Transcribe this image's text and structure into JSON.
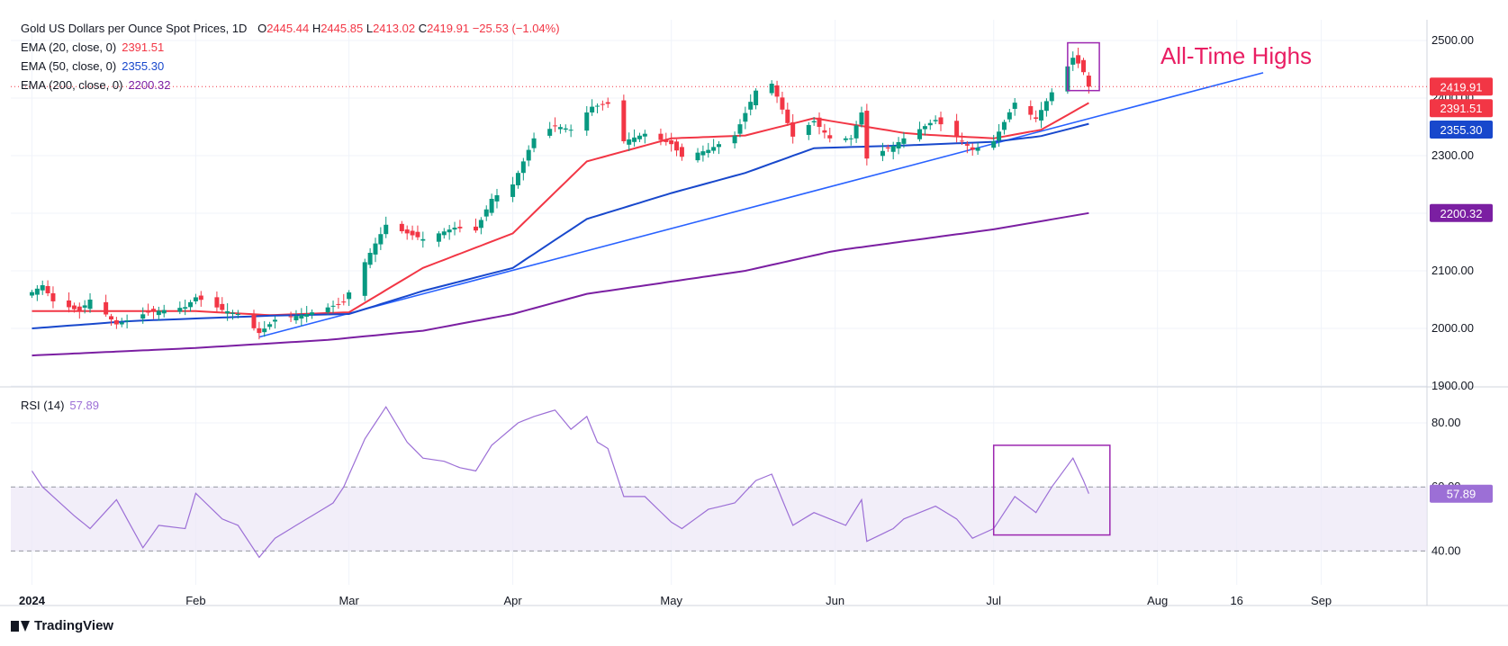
{
  "header": {
    "title": "Gold US Dollars per Ounce Spot Prices, 1D",
    "open_label": "O",
    "open": "2445.44",
    "high_label": "H",
    "high": "2445.85",
    "low_label": "L",
    "low": "2413.02",
    "close_label": "C",
    "close": "2419.91",
    "change": "−25.53 (−1.04%)"
  },
  "indicators": {
    "ema20": {
      "label": "EMA (20, close, 0)",
      "value": "2391.51",
      "color": "#f23645"
    },
    "ema50": {
      "label": "EMA (50, close, 0)",
      "value": "2355.30",
      "color": "#1848cc"
    },
    "ema200": {
      "label": "EMA (200, close, 0)",
      "value": "2200.32",
      "color": "#7b1fa2"
    },
    "rsi": {
      "label": "RSI (14)",
      "value": "57.89",
      "color": "#9c6fd6"
    }
  },
  "annotation": {
    "text": "All-Time Highs",
    "color": "#e91e63"
  },
  "branding": {
    "name": "TradingView"
  },
  "colors": {
    "up": "#089981",
    "down": "#f23645",
    "trendline": "#2962ff",
    "close_line": "#f23645"
  },
  "chart_data": [
    {
      "type": "candlestick",
      "title": "Gold US Dollars per Ounce Spot Prices, 1D",
      "ylim": [
        1900,
        2500
      ],
      "y_ticks": [
        "2500.00",
        "2400.00",
        "2300.00",
        "2200.00",
        "2100.00",
        "2000.00",
        "1900.00"
      ],
      "x_ticks": [
        "2024",
        "Feb",
        "Mar",
        "Apr",
        "May",
        "Jun",
        "Jul",
        "Aug",
        "16",
        "Sep"
      ],
      "price_labels": {
        "close": "2419.91",
        "ema20": "2391.51",
        "ema50": "2355.30",
        "ema200": "2200.32"
      },
      "close_anchors": [
        [
          "2024-01-01",
          2063
        ],
        [
          "2024-01-03",
          2075
        ],
        [
          "2024-01-05",
          2047
        ],
        [
          "2024-01-10",
          2030
        ],
        [
          "2024-01-12",
          2050
        ],
        [
          "2024-01-17",
          2007
        ],
        [
          "2024-01-23",
          2028
        ],
        [
          "2024-01-30",
          2037
        ],
        [
          "2024-02-01",
          2054
        ],
        [
          "2024-02-06",
          2032
        ],
        [
          "2024-02-09",
          2025
        ],
        [
          "2024-02-13",
          1992
        ],
        [
          "2024-02-16",
          2015
        ],
        [
          "2024-02-22",
          2025
        ],
        [
          "2024-02-29",
          2045
        ],
        [
          "2024-03-04",
          2115
        ],
        [
          "2024-03-08",
          2180
        ],
        [
          "2024-03-12",
          2165
        ],
        [
          "2024-03-15",
          2155
        ],
        [
          "2024-03-21",
          2175
        ],
        [
          "2024-03-25",
          2170
        ],
        [
          "2024-03-28",
          2225
        ],
        [
          "2024-04-01",
          2250
        ],
        [
          "2024-04-05",
          2330
        ],
        [
          "2024-04-09",
          2352
        ],
        [
          "2024-04-12",
          2345
        ],
        [
          "2024-04-16",
          2385
        ],
        [
          "2024-04-19",
          2390
        ],
        [
          "2024-04-22",
          2325
        ],
        [
          "2024-04-26",
          2338
        ],
        [
          "2024-05-01",
          2320
        ],
        [
          "2024-05-03",
          2298
        ],
        [
          "2024-05-08",
          2310
        ],
        [
          "2024-05-13",
          2335
        ],
        [
          "2024-05-17",
          2413
        ],
        [
          "2024-05-20",
          2425
        ],
        [
          "2024-05-22",
          2380
        ],
        [
          "2024-05-24",
          2333
        ],
        [
          "2024-05-28",
          2360
        ],
        [
          "2024-05-31",
          2330
        ],
        [
          "2024-06-04",
          2330
        ],
        [
          "2024-06-06",
          2375
        ],
        [
          "2024-06-07",
          2295
        ],
        [
          "2024-06-12",
          2317
        ],
        [
          "2024-06-14",
          2330
        ],
        [
          "2024-06-20",
          2362
        ],
        [
          "2024-06-24",
          2332
        ],
        [
          "2024-06-27",
          2310
        ],
        [
          "2024-07-01",
          2325
        ],
        [
          "2024-07-05",
          2392
        ],
        [
          "2024-07-09",
          2364
        ],
        [
          "2024-07-12",
          2410
        ],
        [
          "2024-07-16",
          2470
        ],
        [
          "2024-07-17",
          2460
        ],
        [
          "2024-07-18",
          2445
        ],
        [
          "2024-07-19",
          2419.91
        ]
      ],
      "series": [
        {
          "name": "EMA (20, close, 0)",
          "anchors": [
            [
              "2024-01-01",
              2030
            ],
            [
              "2024-02-01",
              2030
            ],
            [
              "2024-02-15",
              2023
            ],
            [
              "2024-03-01",
              2028
            ],
            [
              "2024-03-15",
              2105
            ],
            [
              "2024-04-01",
              2165
            ],
            [
              "2024-04-15",
              2290
            ],
            [
              "2024-05-01",
              2330
            ],
            [
              "2024-05-15",
              2335
            ],
            [
              "2024-05-28",
              2365
            ],
            [
              "2024-06-15",
              2338
            ],
            [
              "2024-07-01",
              2330
            ],
            [
              "2024-07-10",
              2345
            ],
            [
              "2024-07-19",
              2391.51
            ]
          ]
        },
        {
          "name": "EMA (50, close, 0)",
          "anchors": [
            [
              "2024-01-01",
              2000
            ],
            [
              "2024-01-20",
              2013
            ],
            [
              "2024-02-15",
              2022
            ],
            [
              "2024-03-01",
              2025
            ],
            [
              "2024-03-15",
              2065
            ],
            [
              "2024-04-01",
              2105
            ],
            [
              "2024-04-15",
              2190
            ],
            [
              "2024-05-01",
              2235
            ],
            [
              "2024-05-15",
              2270
            ],
            [
              "2024-05-28",
              2313
            ],
            [
              "2024-06-15",
              2318
            ],
            [
              "2024-07-01",
              2324
            ],
            [
              "2024-07-10",
              2334
            ],
            [
              "2024-07-19",
              2355.3
            ]
          ]
        },
        {
          "name": "EMA (200, close, 0)",
          "anchors": [
            [
              "2024-01-01",
              1953
            ],
            [
              "2024-02-01",
              1966
            ],
            [
              "2024-02-26",
              1980
            ],
            [
              "2024-03-15",
              1996
            ],
            [
              "2024-04-01",
              2025
            ],
            [
              "2024-04-15",
              2060
            ],
            [
              "2024-05-15",
              2100
            ],
            [
              "2024-06-01",
              2135
            ],
            [
              "2024-07-01",
              2172
            ],
            [
              "2024-07-19",
              2200.32
            ]
          ]
        }
      ],
      "trendline": [
        [
          "2024-02-13",
          1985
        ],
        [
          "2024-08-21",
          2444
        ]
      ],
      "highlight_box": {
        "from": "2024-07-15",
        "to": "2024-07-21",
        "low": 2413,
        "high": 2496
      }
    },
    {
      "type": "line",
      "title": "RSI (14)",
      "ylim": [
        30,
        90
      ],
      "y_ticks": [
        "80.00",
        "60.00",
        "40.00"
      ],
      "bands": [
        40,
        60
      ],
      "last_value": "57.89",
      "anchors": [
        [
          "2024-01-01",
          65
        ],
        [
          "2024-01-03",
          60
        ],
        [
          "2024-01-09",
          51
        ],
        [
          "2024-01-12",
          47
        ],
        [
          "2024-01-17",
          56
        ],
        [
          "2024-01-22",
          41
        ],
        [
          "2024-01-25",
          48
        ],
        [
          "2024-01-30",
          47
        ],
        [
          "2024-02-01",
          58
        ],
        [
          "2024-02-06",
          50
        ],
        [
          "2024-02-09",
          48
        ],
        [
          "2024-02-13",
          38
        ],
        [
          "2024-02-16",
          44
        ],
        [
          "2024-02-22",
          50
        ],
        [
          "2024-02-27",
          55
        ],
        [
          "2024-02-29",
          60
        ],
        [
          "2024-03-04",
          75
        ],
        [
          "2024-03-08",
          85
        ],
        [
          "2024-03-12",
          74
        ],
        [
          "2024-03-15",
          69
        ],
        [
          "2024-03-19",
          68
        ],
        [
          "2024-03-22",
          66
        ],
        [
          "2024-03-25",
          65
        ],
        [
          "2024-03-28",
          73
        ],
        [
          "2024-04-02",
          80
        ],
        [
          "2024-04-05",
          82
        ],
        [
          "2024-04-09",
          84
        ],
        [
          "2024-04-12",
          78
        ],
        [
          "2024-04-15",
          82
        ],
        [
          "2024-04-17",
          74
        ],
        [
          "2024-04-19",
          72
        ],
        [
          "2024-04-22",
          57
        ],
        [
          "2024-04-26",
          57
        ],
        [
          "2024-05-01",
          49
        ],
        [
          "2024-05-03",
          47
        ],
        [
          "2024-05-08",
          53
        ],
        [
          "2024-05-13",
          55
        ],
        [
          "2024-05-17",
          62
        ],
        [
          "2024-05-20",
          64
        ],
        [
          "2024-05-24",
          48
        ],
        [
          "2024-05-28",
          52
        ],
        [
          "2024-06-03",
          48
        ],
        [
          "2024-06-06",
          56
        ],
        [
          "2024-06-07",
          43
        ],
        [
          "2024-06-12",
          47
        ],
        [
          "2024-06-14",
          50
        ],
        [
          "2024-06-20",
          54
        ],
        [
          "2024-06-24",
          50
        ],
        [
          "2024-06-27",
          44
        ],
        [
          "2024-07-01",
          47
        ],
        [
          "2024-07-05",
          57
        ],
        [
          "2024-07-09",
          52
        ],
        [
          "2024-07-12",
          60
        ],
        [
          "2024-07-16",
          69
        ],
        [
          "2024-07-18",
          62
        ],
        [
          "2024-07-19",
          57.89
        ]
      ],
      "highlight_box": {
        "from": "2024-07-01",
        "to": "2024-07-23",
        "low": 45,
        "high": 73
      }
    }
  ]
}
